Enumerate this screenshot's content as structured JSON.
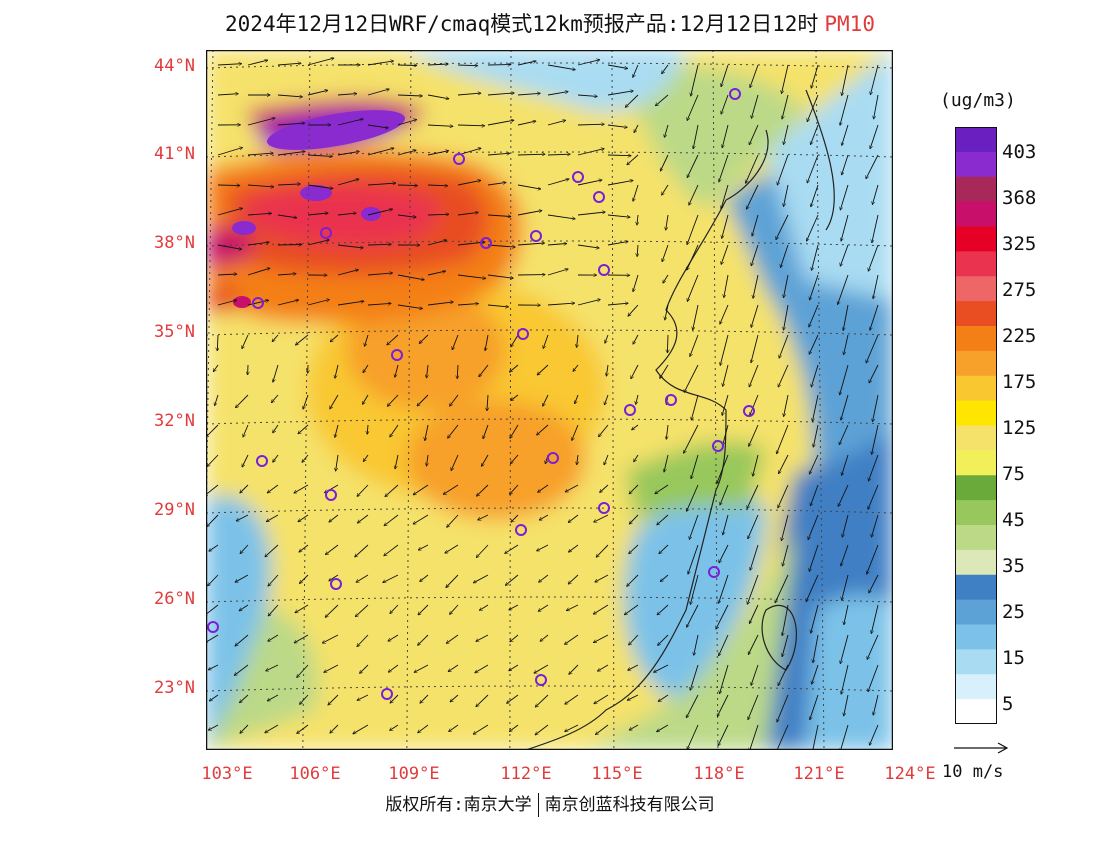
{
  "title": "2024年12月12日WRF/cmaq模式12km预报产品:12月12日12时",
  "species": "PM10",
  "lat_labels": [
    "44°N",
    "41°N",
    "38°N",
    "35°N",
    "32°N",
    "29°N",
    "26°N",
    "23°N"
  ],
  "lon_labels": [
    "103°E",
    "106°E",
    "109°E",
    "112°E",
    "115°E",
    "118°E",
    "121°E",
    "124°E"
  ],
  "colorbar": {
    "unit": "(ug/m3)",
    "labels": [
      "403",
      "368",
      "325",
      "275",
      "225",
      "175",
      "125",
      "75",
      "45",
      "35",
      "25",
      "15",
      "5"
    ],
    "colors": [
      "#ffffff",
      "#d8f0fb",
      "#a9dcf2",
      "#7cc2e8",
      "#5da2d6",
      "#3f7fc4",
      "#dde8b8",
      "#bbd987",
      "#98c85c",
      "#6aaa3a",
      "#f2f05a",
      "#f5e26a",
      "#ffe600",
      "#f9c830",
      "#f7a02a",
      "#f47f16",
      "#e84e22",
      "#ee6666",
      "#ea334f",
      "#e60026",
      "#c8106a",
      "#a8285a",
      "#8a2bd0",
      "#6a20c0"
    ]
  },
  "wind_reference": {
    "label": "10 m/s"
  },
  "footer": {
    "left": "版权所有:南京大学",
    "right": "南京创蓝科技有限公司"
  },
  "colors": {
    "label_red": "#e23b3b",
    "marker_purple": "#7a1fd8"
  }
}
